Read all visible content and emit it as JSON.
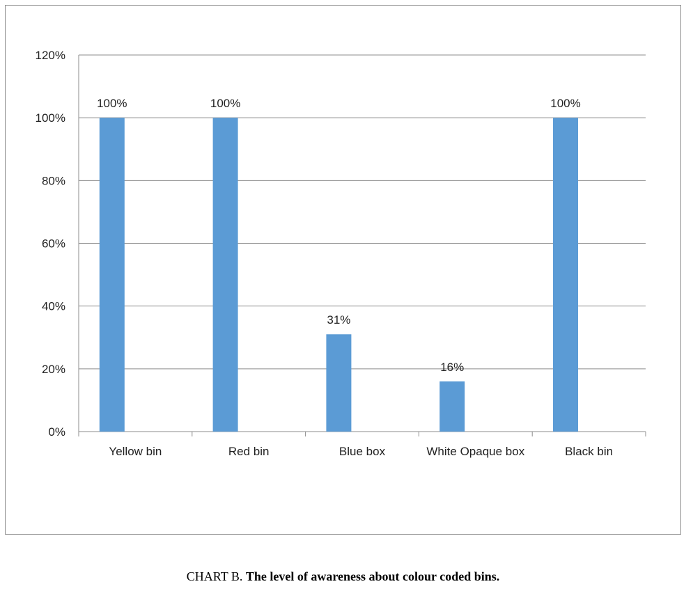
{
  "caption": {
    "prefix": "CHART B.",
    "title": "The level of awareness about colour coded bins."
  },
  "chart_data": {
    "type": "bar",
    "categories": [
      "Yellow bin",
      "Red bin",
      "Blue box",
      "White Opaque box",
      "Black bin"
    ],
    "values": [
      100,
      100,
      31,
      16,
      100
    ],
    "data_labels": [
      "100%",
      "100%",
      "31%",
      "16%",
      "100%"
    ],
    "y_ticks": [
      "0%",
      "20%",
      "40%",
      "60%",
      "80%",
      "100%",
      "120%"
    ],
    "ylim": [
      0,
      120
    ],
    "y_unit": "%",
    "grid": true,
    "legend": "none",
    "bar_color": "#5b9bd5",
    "grid_color": "#8c8c8c"
  }
}
